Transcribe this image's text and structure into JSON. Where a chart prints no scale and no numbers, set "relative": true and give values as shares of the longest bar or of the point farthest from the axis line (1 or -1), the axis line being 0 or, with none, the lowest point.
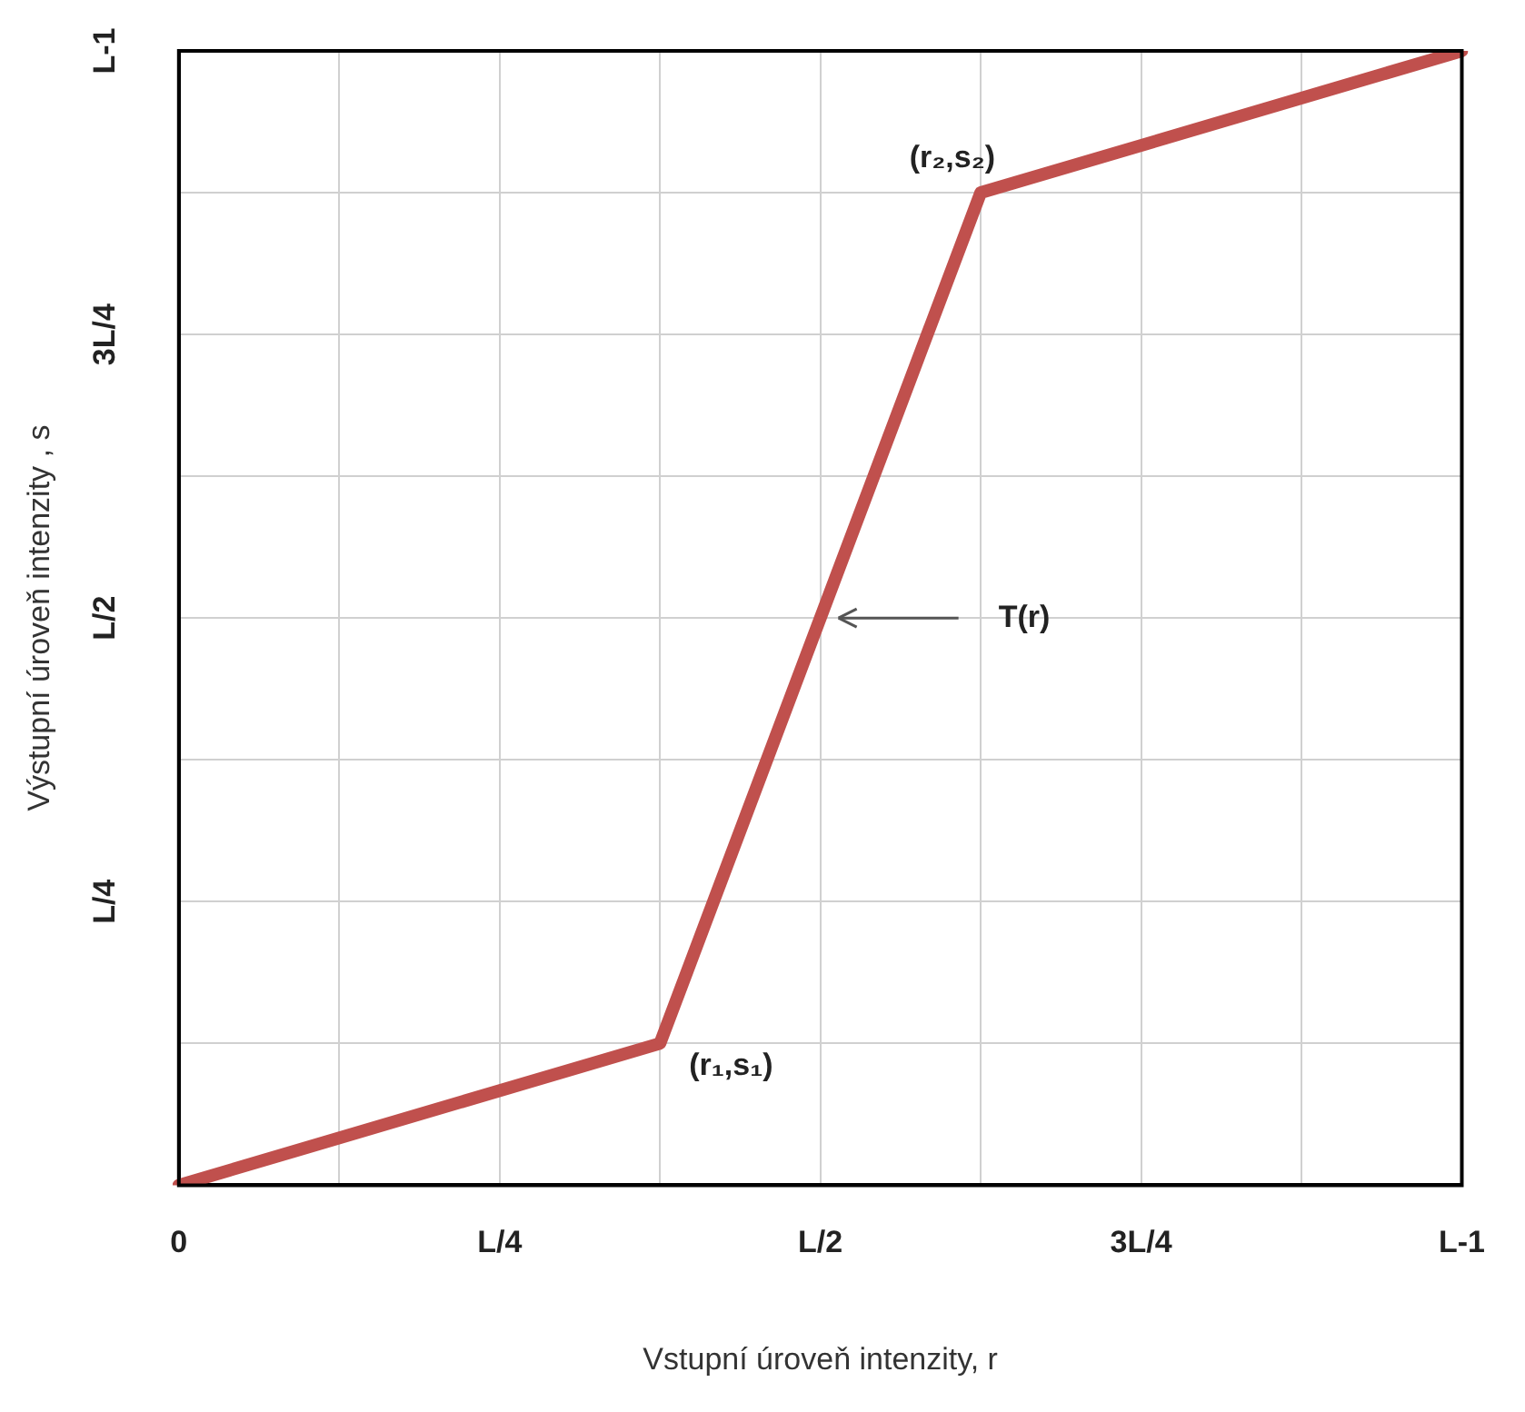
{
  "chart_data": {
    "type": "line",
    "relative": true,
    "xlabel": "Vstupní úroveň intenzity, r",
    "ylabel": "Výstupní úroveň intenzity , s",
    "categories": [
      "0",
      null,
      "L/4",
      null,
      "L/2",
      null,
      "3L/4",
      null,
      "L-1"
    ],
    "series": [
      {
        "color": "#c0504d",
        "values": [
          0,
          null,
          null,
          0.125,
          null,
          0.875,
          null,
          null,
          1
        ]
      }
    ],
    "annotations": [
      "(r₁,s₁)",
      "(r₂,s₂)",
      "T(r)",
      "L/4",
      "L/2",
      "3L/4",
      "L-1"
    ],
    "grid": true,
    "legend": false,
    "marker": "none",
    "line_style": "solid"
  }
}
